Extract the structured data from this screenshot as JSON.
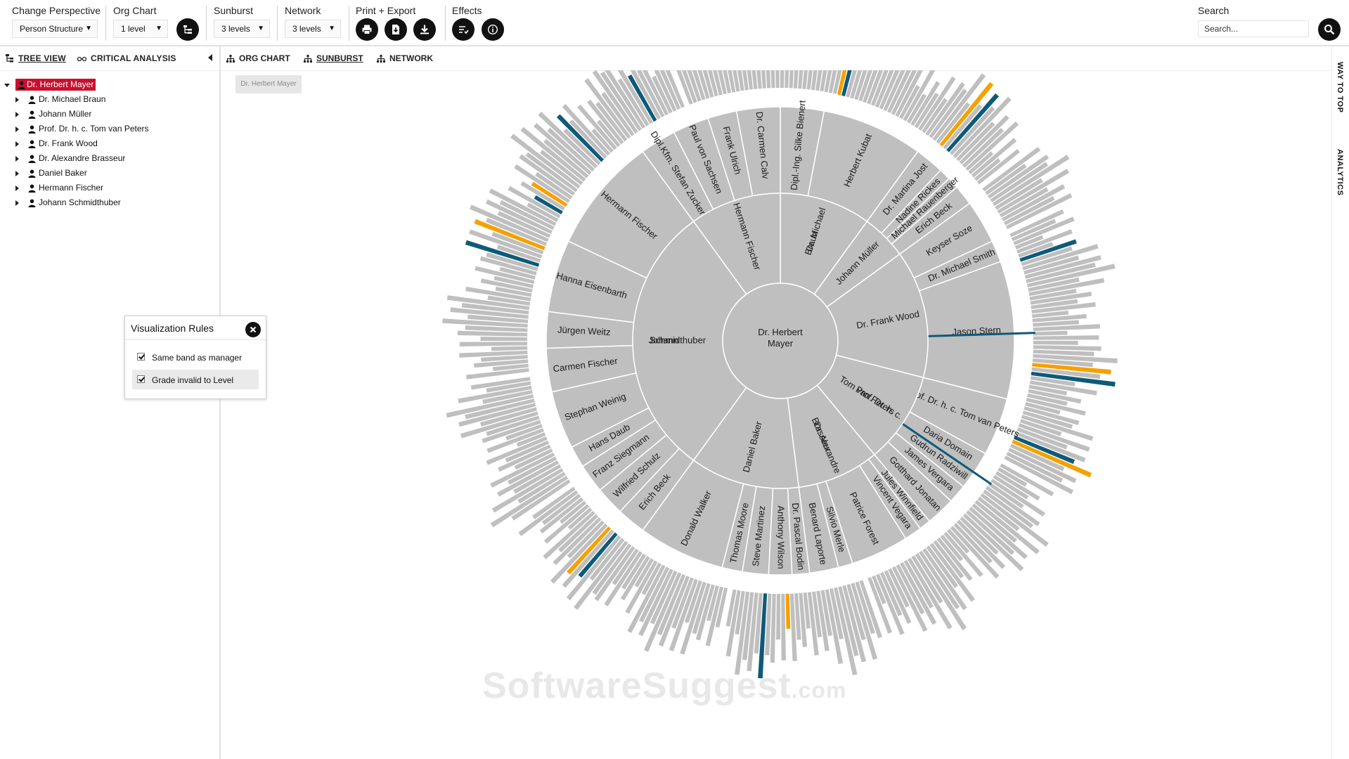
{
  "toolbar": {
    "perspective": {
      "label": "Change Perspective",
      "value": "Person Structure"
    },
    "orgchart": {
      "label": "Org Chart",
      "value": "1 level"
    },
    "sunburst": {
      "label": "Sunburst",
      "value": "3 levels"
    },
    "network": {
      "label": "Network",
      "value": "3 levels"
    },
    "print": {
      "label": "Print + Export"
    },
    "effects": {
      "label": "Effects"
    },
    "search": {
      "label": "Search",
      "placeholder": "Search..."
    }
  },
  "left_panel": {
    "tabs": [
      "TREE VIEW",
      "CRITICAL ANALYSIS"
    ],
    "root": "Dr. Herbert Mayer",
    "children": [
      "Dr. Michael Braun",
      "Johann Müller",
      "Prof. Dr. h. c. Tom van Peters",
      "Dr. Frank Wood",
      "Dr. Alexandre Brasseur",
      "Daniel Baker",
      "Hermann Fischer",
      "Johann Schmidthuber"
    ]
  },
  "viz_rules": {
    "title": "Visualization Rules",
    "rules": [
      {
        "label": "Same band as manager",
        "checked": true
      },
      {
        "label": "Grade invalid to Level",
        "checked": true
      }
    ]
  },
  "view_tabs": [
    "ORG CHART",
    "SUNBURST",
    "NETWORK"
  ],
  "active_view": "SUNBURST",
  "breadcrumb": "Dr. Herbert Mayer",
  "right_strip": [
    "WAY TO TOP",
    "ANALYTICS"
  ],
  "colors": {
    "segment": "#bfbfbf",
    "highlight_blue": "#0e5a78",
    "highlight_orange": "#f5a100",
    "root_selected": "#c8102e"
  },
  "chart_data": {
    "type": "sunburst",
    "levels": 3,
    "center": "Dr. Herbert Mayer",
    "ring1": [
      {
        "name": "Dr. Michael Braun",
        "share": 0.1
      },
      {
        "name": "Johann Müller",
        "share": 0.05
      },
      {
        "name": "Dr. Frank Wood",
        "share": 0.14
      },
      {
        "name": "Prof. Dr. h. c. Tom van Peters",
        "share": 0.1
      },
      {
        "name": "Dr. Alexandre Brasseur",
        "share": 0.09
      },
      {
        "name": "Daniel Baker",
        "share": 0.12
      },
      {
        "name": "Johann Schmidthuber",
        "share": 0.3
      },
      {
        "name": "Hermann Fischer",
        "share": 0.1
      }
    ],
    "ring2": [
      {
        "name": "Dipl.-Ing. Silke Bienert",
        "parent": "Dr. Michael Braun",
        "share": 0.03
      },
      {
        "name": "Herbert Kubat",
        "parent": "Dr. Michael Braun",
        "share": 0.07
      },
      {
        "name": "Dr. Martina Jost",
        "parent": "Johann Müller",
        "share": 0.02
      },
      {
        "name": "Nadine Rickes",
        "parent": "Johann Müller",
        "share": 0.008
      },
      {
        "name": "Michael Rauenberger",
        "parent": "Johann Müller",
        "share": 0.008
      },
      {
        "name": "Erich Beck",
        "parent": "Johann Müller",
        "share": 0.014
      },
      {
        "name": "Keyser Soze",
        "parent": "Dr. Frank Wood",
        "share": 0.03
      },
      {
        "name": "Dr. Michael Smith",
        "parent": "Dr. Frank Wood",
        "share": 0.015
      },
      {
        "name": "Jason Stern",
        "parent": "Dr. Frank Wood",
        "share": 0.095
      },
      {
        "name": "Prof. Dr. h. c. Tom van Peters",
        "parent": "Prof. Dr. h. c. Tom van Peters",
        "share": 0.04
      },
      {
        "name": "Daria Domain",
        "parent": "Prof. Dr. h. c. Tom van Peters",
        "share": 0.015
      },
      {
        "name": "Gudrun Radziwill",
        "parent": "Prof. Dr. h. c. Tom van Peters",
        "share": 0.012
      },
      {
        "name": "James Vergara",
        "parent": "Prof. Dr. h. c. Tom van Peters",
        "share": 0.013
      },
      {
        "name": "Gotthard Jonatan",
        "parent": "Prof. Dr. h. c. Tom van Peters",
        "share": 0.02
      },
      {
        "name": "Jules Winnfield",
        "parent": "Dr. Alexandre Brasseur",
        "share": 0.008
      },
      {
        "name": "Vincent Vegara",
        "parent": "Dr. Alexandre Brasseur",
        "share": 0.012
      },
      {
        "name": "Patrice Forest",
        "parent": "Dr. Alexandre Brasseur",
        "share": 0.04
      },
      {
        "name": "Silvio Merle",
        "parent": "Dr. Alexandre Brasseur",
        "share": 0.01
      },
      {
        "name": "Benard Laporte",
        "parent": "Dr. Alexandre Brasseur",
        "share": 0.02
      },
      {
        "name": "Dr. Pascal Bodin",
        "parent": "Daniel Baker",
        "share": 0.012
      },
      {
        "name": "Anthony Wilson",
        "parent": "Daniel Baker",
        "share": 0.016
      },
      {
        "name": "Steve Martinez",
        "parent": "Daniel Baker",
        "share": 0.018
      },
      {
        "name": "Thomas Moore",
        "parent": "Daniel Baker",
        "share": 0.014
      },
      {
        "name": "Donald Walker",
        "parent": "Daniel Baker",
        "share": 0.06
      },
      {
        "name": "Erich Beck",
        "parent": "Johann Schmidthuber",
        "share": 0.02
      },
      {
        "name": "Wilfried Schulz",
        "parent": "Johann Schmidthuber",
        "share": 0.02
      },
      {
        "name": "Franz Siegmann",
        "parent": "Johann Schmidthuber",
        "share": 0.02
      },
      {
        "name": "Hans Daub",
        "parent": "Johann Schmidthuber",
        "share": 0.015
      },
      {
        "name": "Stephan Weinig",
        "parent": "Johann Schmidthuber",
        "share": 0.04
      },
      {
        "name": "Carmen Fischer",
        "parent": "Johann Schmidthuber",
        "share": 0.03
      },
      {
        "name": "Jürgen Weitz",
        "parent": "Johann Schmidthuber",
        "share": 0.025
      },
      {
        "name": "Hanna Eisenbarth",
        "parent": "Johann Schmidthuber",
        "share": 0.05
      },
      {
        "name": "Hermann Fischer",
        "parent": "Johann Schmidthuber",
        "share": 0.08
      },
      {
        "name": "Dipl.Kfm. Stefan Zucker",
        "parent": "Hermann Fischer",
        "share": 0.025
      },
      {
        "name": "Paul von Sachsen",
        "parent": "Hermann Fischer",
        "share": 0.025
      },
      {
        "name": "Frank Ulrich",
        "parent": "Hermann Fischer",
        "share": 0.02
      },
      {
        "name": "Dr. Carmen Calv",
        "parent": "Hermann Fischer",
        "share": 0.03
      }
    ]
  }
}
